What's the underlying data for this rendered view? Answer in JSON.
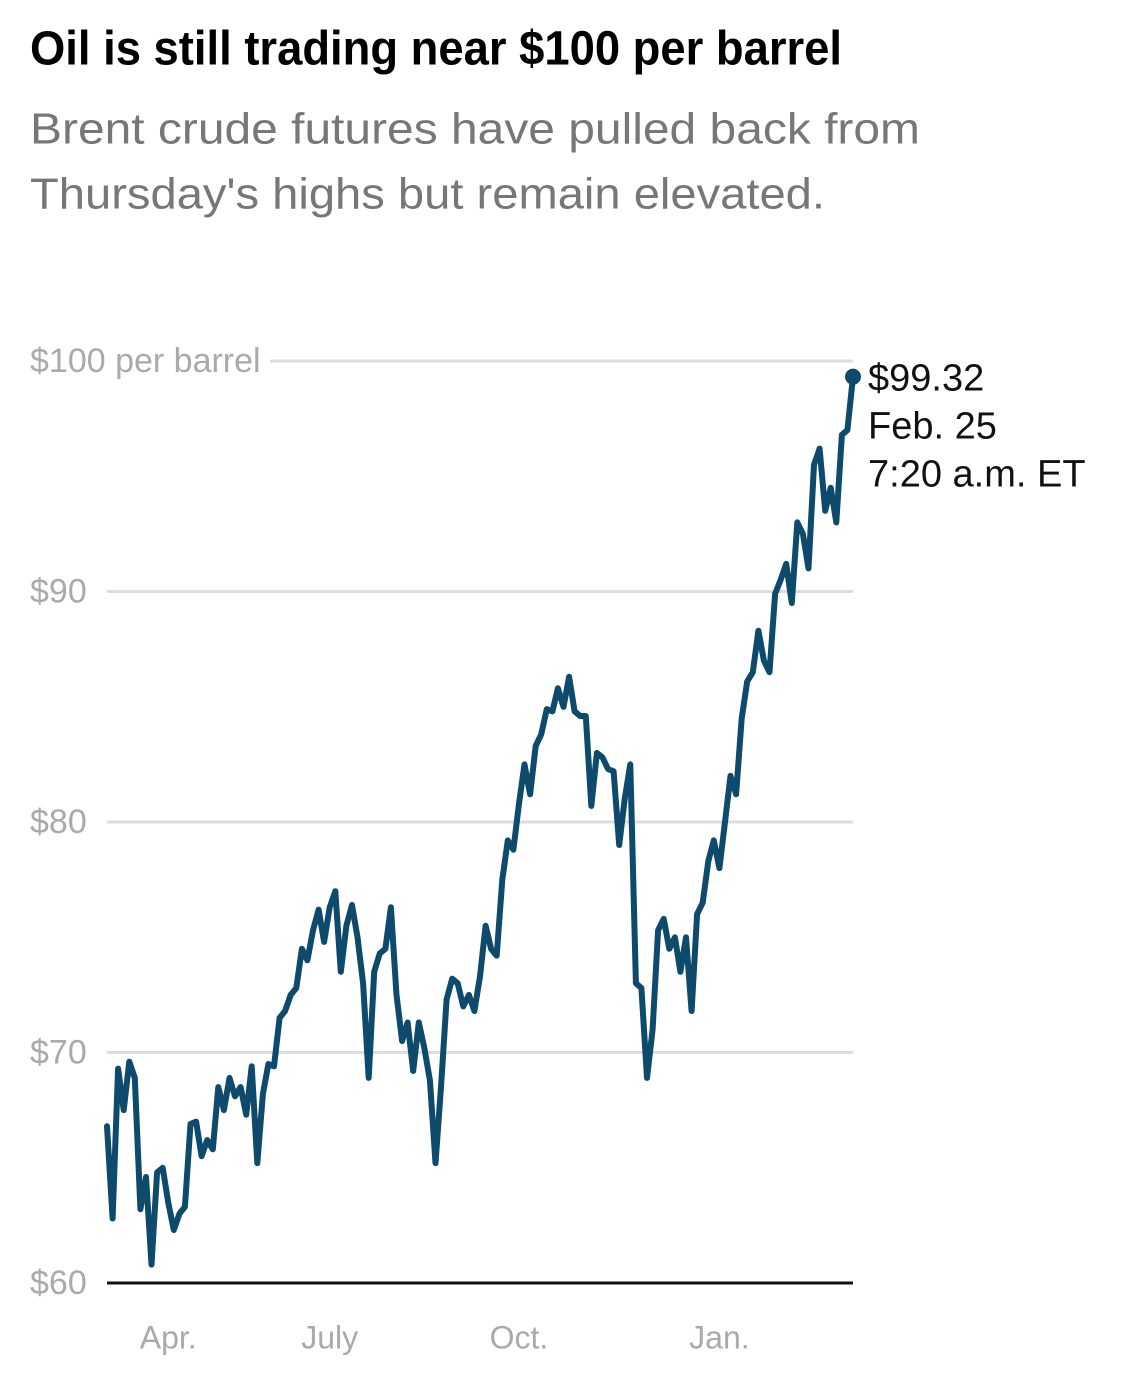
{
  "chart_data": {
    "type": "line",
    "title": "Oil is still trading near $100 per barrel",
    "subtitle": [
      "Brent crude futures have pulled back from",
      "Thursday's highs but remain elevated."
    ],
    "categories": [
      null,
      null,
      null,
      null,
      null,
      null,
      null,
      null,
      null,
      null,
      null,
      "Apr.",
      null,
      null,
      null,
      null,
      null,
      null,
      null,
      null,
      null,
      null,
      null,
      null,
      null,
      null,
      null,
      null,
      null,
      null,
      null,
      null,
      null,
      null,
      null,
      null,
      null,
      null,
      null,
      null,
      "July",
      null,
      null,
      null,
      null,
      null,
      null,
      null,
      null,
      null,
      null,
      null,
      null,
      null,
      null,
      null,
      null,
      null,
      null,
      null,
      null,
      null,
      null,
      null,
      null,
      null,
      null,
      null,
      null,
      null,
      null,
      null,
      null,
      null,
      "Oct.",
      null,
      null,
      null,
      null,
      null,
      null,
      null,
      null,
      null,
      null,
      null,
      null,
      null,
      null,
      null,
      null,
      null,
      null,
      null,
      null,
      null,
      null,
      null,
      null,
      null,
      null,
      null,
      null,
      null,
      null,
      null,
      null,
      null,
      null,
      null,
      "Jan.",
      null,
      null,
      null,
      null,
      null,
      null,
      null,
      null,
      null,
      null,
      null,
      null,
      null,
      null,
      null,
      null,
      null,
      null,
      null,
      null,
      null,
      null,
      null,
      null
    ],
    "series": [
      {
        "name": "Brent crude futures",
        "color": "#0d4a6b",
        "values": [
          66.8,
          62.8,
          69.3,
          67.5,
          69.6,
          68.9,
          63.2,
          64.6,
          60.8,
          64.8,
          65.0,
          63.5,
          62.3,
          63.0,
          63.3,
          66.9,
          67.0,
          65.5,
          66.2,
          65.8,
          68.5,
          67.5,
          68.9,
          68.1,
          68.5,
          67.3,
          69.4,
          65.2,
          68.2,
          69.5,
          69.4,
          71.5,
          71.8,
          72.5,
          72.8,
          74.5,
          74.0,
          75.3,
          76.2,
          74.8,
          76.3,
          77.0,
          73.5,
          75.5,
          76.4,
          75.0,
          73.0,
          68.9,
          73.5,
          74.3,
          74.5,
          76.3,
          72.5,
          70.5,
          71.3,
          69.2,
          71.3,
          70.2,
          68.8,
          65.2,
          68.5,
          72.3,
          73.2,
          73.0,
          72.0,
          72.5,
          71.8,
          73.3,
          75.5,
          74.5,
          74.2,
          77.5,
          79.2,
          78.8,
          80.8,
          82.5,
          81.2,
          83.3,
          83.8,
          84.9,
          84.8,
          85.8,
          85.0,
          86.3,
          84.8,
          84.6,
          84.6,
          80.7,
          83.0,
          82.8,
          82.3,
          82.2,
          79.0,
          81.0,
          82.5,
          73.0,
          72.8,
          68.9,
          71.0,
          75.3,
          75.8,
          74.5,
          75.0,
          73.5,
          75.0,
          71.8,
          76.0,
          76.5,
          78.3,
          79.2,
          78.0,
          80.0,
          82.0,
          81.2,
          84.5,
          86.1,
          86.5,
          88.3,
          87.0,
          86.5,
          89.9,
          90.5,
          91.2,
          89.5,
          93.0,
          92.5,
          91.0,
          95.5,
          96.2,
          93.5,
          94.5,
          93.0,
          96.8,
          97.0,
          99.32
        ]
      }
    ],
    "annotation": {
      "value_label": "$99.32",
      "lines": [
        "Feb. 25",
        "7:20 a.m. ET"
      ]
    },
    "ylim": [
      60,
      100
    ],
    "yticks": [
      {
        "value": 60,
        "label": "$60"
      },
      {
        "value": 70,
        "label": "$70"
      },
      {
        "value": 80,
        "label": "$80"
      },
      {
        "value": 90,
        "label": "$90"
      },
      {
        "value": 100,
        "label": "$100 per barrel"
      }
    ],
    "grid": true
  }
}
